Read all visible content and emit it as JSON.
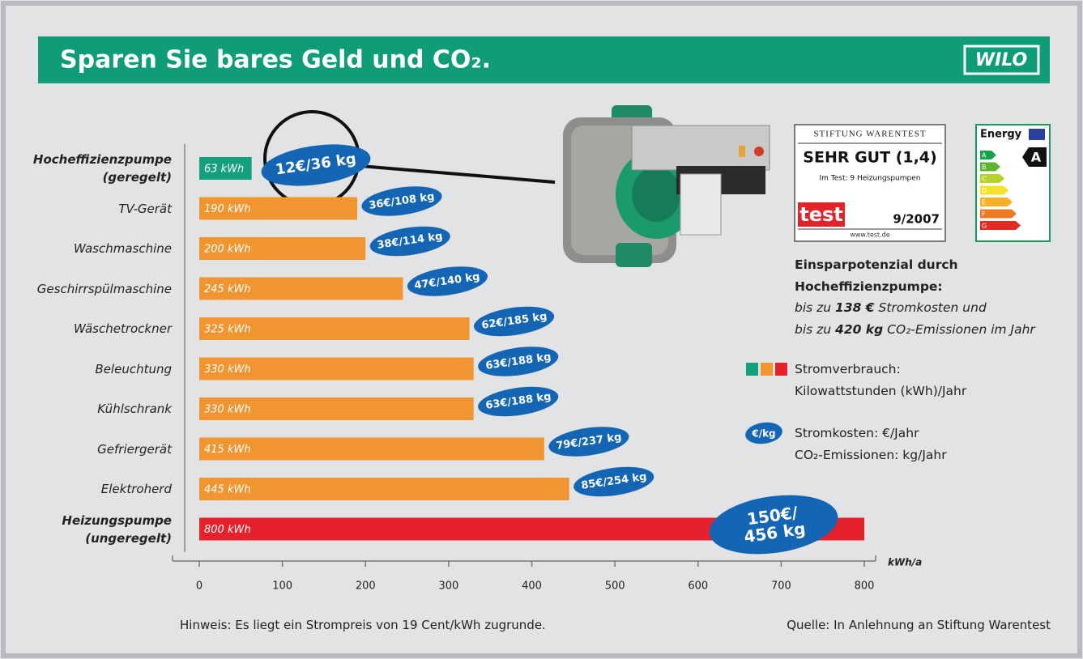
{
  "header": {
    "title": "Sparen Sie bares Geld und CO₂.",
    "logo": "WILO"
  },
  "chart_data": {
    "type": "bar",
    "orientation": "horizontal",
    "categories": [
      "Hocheffizienzpumpe\n(geregelt)",
      "TV-Gerät",
      "Waschmaschine",
      "Geschirrspülmaschine",
      "Wäschetrockner",
      "Beleuchtung",
      "Kühlschrank",
      "Gefriergerät",
      "Elektroherd",
      "Heizungspumpe\n(ungeregelt)"
    ],
    "values": [
      63,
      190,
      200,
      245,
      325,
      330,
      330,
      415,
      445,
      800
    ],
    "value_labels": [
      "63 kWh",
      "190 kWh",
      "200 kWh",
      "245 kWh",
      "325 kWh",
      "330 kWh",
      "330 kWh",
      "415 kWh",
      "445 kWh",
      "800 kWh"
    ],
    "colors": [
      "#14a07c",
      "#f0952f",
      "#f0952f",
      "#f0952f",
      "#f0952f",
      "#f0952f",
      "#f0952f",
      "#f0952f",
      "#f0952f",
      "#e5222b"
    ],
    "bubble_labels": [
      "12€/36 kg",
      "36€/108 kg",
      "38€/114 kg",
      "47€/140 kg",
      "62€/185 kg",
      "63€/188 kg",
      "63€/188 kg",
      "79€/237 kg",
      "85€/254 kg",
      "150€/\n456 kg"
    ],
    "bubble_color": "#1466b4",
    "xlim": [
      0,
      800
    ],
    "xticks": [
      0,
      100,
      200,
      300,
      400,
      500,
      600,
      700,
      800
    ],
    "xlabel": "kWh/a",
    "legend": {
      "consumption": "Stromverbrauch:\nKilowattstunden (kWh)/Jahr",
      "icon": "€/kg",
      "costs": "Stromkosten: €/Jahr\nCO₂-Emissionen: kg/Jahr"
    },
    "note": "Hinweis: Es liegt ein Strompreis von 19 Cent/kWh zugrunde.",
    "source": "Quelle: In Anlehnung an Stiftung Warentest"
  },
  "savings": {
    "heading": "Einsparpotenzial durch\nHocheffizienzpumpe:",
    "line1": [
      "bis zu ",
      "138 €",
      " Stromkosten und"
    ],
    "line2": [
      "bis zu ",
      "420 kg",
      " CO₂-Emissionen im Jahr"
    ]
  },
  "badge": {
    "org": "STIFTUNG WARENTEST",
    "rating": "SEHR GUT (1,4)",
    "test": "Im Test: 9 Heizungspumpen",
    "brand": "test",
    "date": "9/2007",
    "url": "www.test.de"
  },
  "energy_label": {
    "title": "Energy",
    "classes": [
      "A",
      "B",
      "C",
      "D",
      "E",
      "F",
      "G"
    ],
    "rating": "A"
  }
}
